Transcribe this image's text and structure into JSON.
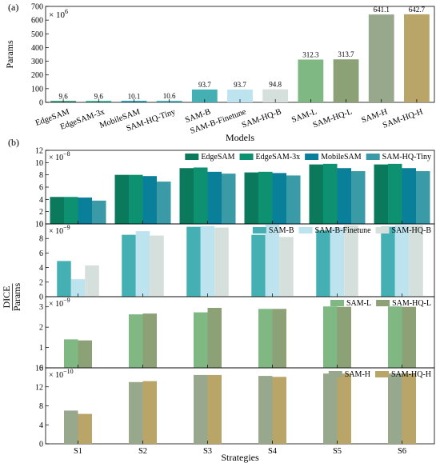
{
  "chart_data": [
    {
      "type": "bar",
      "panel_label": "(a)",
      "title": "",
      "xlabel": "Models",
      "ylabel": "Params",
      "multiplier": "× 10",
      "multiplier_exp": "6",
      "ylim": [
        0,
        700
      ],
      "yticks": [
        0,
        100,
        200,
        300,
        400,
        500,
        600,
        700
      ],
      "grid": false,
      "categories": [
        "EdgeSAM",
        "EdgeSAM-3x",
        "MobileSAM",
        "SAM-HQ-Tiny",
        "SAM-B",
        "SAM-B-Finetune",
        "SAM-HQ-B",
        "SAM-L",
        "SAM-HQ-L",
        "SAM-H",
        "SAM-HQ-H"
      ],
      "values": [
        9.6,
        9.6,
        10.1,
        10.6,
        93.7,
        93.7,
        94.8,
        312.3,
        313.7,
        641.1,
        642.7
      ],
      "data_labels": [
        "9.6",
        "9.6",
        "10.1",
        "10.6",
        "93.7",
        "93.7",
        "94.8",
        "312.3",
        "313.7",
        "641.1",
        "642.7"
      ],
      "colors": [
        "#0b7a5c",
        "#0e9170",
        "#0a7f9a",
        "#3a9aa5",
        "#45b0b3",
        "#bde3ef",
        "#d5e0dc",
        "#80b883",
        "#8da176",
        "#97a88d",
        "#b9a568"
      ]
    },
    {
      "panel_label": "(b)",
      "xlabel": "Strategies",
      "ylabel_numerator": "DICE",
      "ylabel_denominator": "Params",
      "categories": [
        "S1",
        "S2",
        "S3",
        "S4",
        "S5",
        "S6"
      ],
      "panels": [
        {
          "type": "bar",
          "multiplier": "× 10",
          "multiplier_exp": "−8",
          "ylim": [
            0,
            12
          ],
          "yticks": [
            0,
            2,
            4,
            6,
            8,
            10,
            12
          ],
          "legend_position": "top-right",
          "series": [
            {
              "name": "EdgeSAM",
              "color": "#0b7a5c",
              "values": [
                4.4,
                8.0,
                9.1,
                8.4,
                9.7,
                9.7
              ]
            },
            {
              "name": "EdgeSAM-3x",
              "color": "#0e9170",
              "values": [
                4.4,
                8.0,
                9.2,
                8.5,
                9.8,
                9.8
              ]
            },
            {
              "name": "MobileSAM",
              "color": "#0a7f9a",
              "values": [
                4.3,
                7.8,
                8.5,
                8.3,
                9.1,
                9.1
              ]
            },
            {
              "name": "SAM-HQ-Tiny",
              "color": "#3a9aa5",
              "values": [
                3.8,
                6.9,
                8.2,
                7.9,
                8.6,
                8.6
              ]
            }
          ]
        },
        {
          "type": "bar",
          "multiplier": "× 10",
          "multiplier_exp": "−9",
          "ylim": [
            0,
            10
          ],
          "yticks": [
            0,
            2,
            4,
            6,
            8,
            10
          ],
          "legend_position": "top-right",
          "series": [
            {
              "name": "SAM-B",
              "color": "#45b0b3",
              "values": [
                4.9,
                8.5,
                9.6,
                8.5,
                9.1,
                9.6
              ]
            },
            {
              "name": "SAM-B-Finetune",
              "color": "#bde3ef",
              "values": [
                2.4,
                9.0,
                9.7,
                9.9,
                9.5,
                9.8
              ]
            },
            {
              "name": "SAM-HQ-B",
              "color": "#d5e0dc",
              "values": [
                4.3,
                8.4,
                9.5,
                8.2,
                9.8,
                9.8
              ]
            }
          ]
        },
        {
          "type": "bar",
          "multiplier": "× 10",
          "multiplier_exp": "−9",
          "ylim": [
            0,
            3.5
          ],
          "yticks": [
            0,
            1,
            2,
            3
          ],
          "legend_position": "top-right",
          "series": [
            {
              "name": "SAM-L",
              "color": "#80b883",
              "values": [
                1.4,
                2.63,
                2.73,
                2.9,
                3.02,
                3.02
              ]
            },
            {
              "name": "SAM-HQ-L",
              "color": "#8da176",
              "values": [
                1.35,
                2.67,
                2.95,
                2.9,
                3.0,
                3.0
              ]
            }
          ]
        },
        {
          "type": "bar",
          "multiplier": "× 10",
          "multiplier_exp": "−10",
          "ylim": [
            0,
            16
          ],
          "yticks": [
            0,
            4,
            8,
            12,
            16
          ],
          "legend_position": "top-right",
          "series": [
            {
              "name": "SAM-H",
              "color": "#97a88d",
              "values": [
                7.0,
                13.0,
                14.5,
                14.3,
                14.8,
                14.8
              ]
            },
            {
              "name": "SAM-HQ-H",
              "color": "#b9a568",
              "values": [
                6.3,
                13.2,
                14.5,
                14.1,
                14.8,
                14.8
              ]
            }
          ]
        }
      ]
    }
  ]
}
